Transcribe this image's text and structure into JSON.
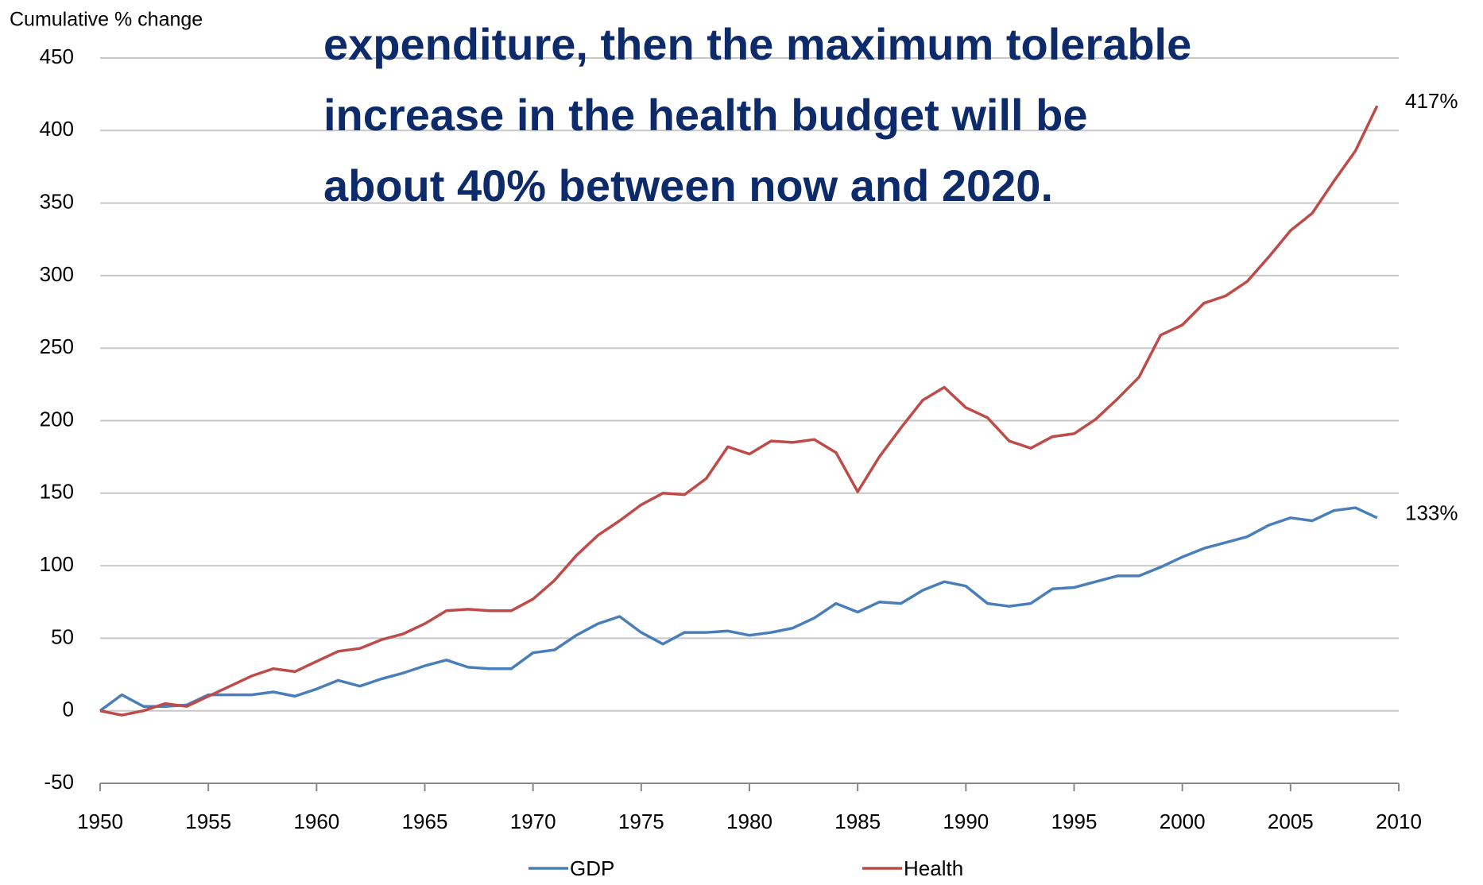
{
  "chart_data": {
    "type": "line",
    "y_axis_label": "Cumulative % change",
    "x": [
      1950,
      1951,
      1952,
      1953,
      1954,
      1955,
      1956,
      1957,
      1958,
      1959,
      1960,
      1961,
      1962,
      1963,
      1964,
      1965,
      1966,
      1967,
      1968,
      1969,
      1970,
      1971,
      1972,
      1973,
      1974,
      1975,
      1976,
      1977,
      1978,
      1979,
      1980,
      1981,
      1982,
      1983,
      1984,
      1985,
      1986,
      1987,
      1988,
      1989,
      1990,
      1991,
      1992,
      1993,
      1994,
      1995,
      1996,
      1997,
      1998,
      1999,
      2000,
      2001,
      2002,
      2003,
      2004,
      2005,
      2006,
      2007,
      2008,
      2009
    ],
    "series": [
      {
        "name": "GDP",
        "color": "#4a7ebb",
        "values": [
          0,
          11,
          3,
          3,
          4,
          11,
          11,
          11,
          13,
          10,
          15,
          21,
          17,
          22,
          26,
          31,
          35,
          30,
          29,
          29,
          40,
          42,
          52,
          60,
          65,
          54,
          46,
          54,
          54,
          55,
          52,
          54,
          57,
          64,
          74,
          68,
          75,
          74,
          83,
          89,
          86,
          74,
          72,
          74,
          84,
          85,
          89,
          93,
          93,
          99,
          106,
          112,
          116,
          120,
          128,
          133,
          131,
          138,
          140,
          133
        ],
        "value_labels": [
          null,
          null,
          null,
          null,
          null,
          null,
          null,
          null,
          null,
          null,
          null,
          null,
          null,
          null,
          null,
          null,
          null,
          null,
          null,
          null,
          null,
          null,
          null,
          null,
          null,
          null,
          null,
          null,
          null,
          null,
          null,
          null,
          null,
          null,
          null,
          null,
          null,
          null,
          null,
          null,
          null,
          null,
          null,
          null,
          null,
          null,
          null,
          null,
          null,
          null,
          null,
          null,
          null,
          null,
          null,
          null,
          null,
          null,
          null,
          "133%"
        ]
      },
      {
        "name": "Health",
        "color": "#be4b48",
        "values": [
          0,
          -3,
          0,
          5,
          3,
          10,
          17,
          24,
          29,
          27,
          34,
          41,
          43,
          49,
          53,
          60,
          69,
          70,
          69,
          69,
          77,
          90,
          107,
          121,
          131,
          142,
          150,
          149,
          160,
          182,
          177,
          186,
          185,
          187,
          178,
          151,
          175,
          195,
          214,
          223,
          209,
          202,
          186,
          181,
          189,
          191,
          201,
          215,
          230,
          259,
          266,
          281,
          286,
          296,
          313,
          331,
          343,
          365,
          386,
          417
        ],
        "value_labels": [
          null,
          null,
          null,
          null,
          null,
          null,
          null,
          null,
          null,
          null,
          null,
          null,
          null,
          null,
          null,
          null,
          null,
          null,
          null,
          null,
          null,
          null,
          null,
          null,
          null,
          null,
          null,
          null,
          null,
          null,
          null,
          null,
          null,
          null,
          null,
          null,
          null,
          null,
          null,
          null,
          null,
          null,
          null,
          null,
          null,
          null,
          null,
          null,
          null,
          null,
          null,
          null,
          null,
          null,
          null,
          null,
          null,
          null,
          null,
          "417%"
        ]
      }
    ],
    "xlim": [
      1950,
      2010
    ],
    "xticks": [
      1950,
      1955,
      1960,
      1965,
      1970,
      1975,
      1980,
      1985,
      1990,
      1995,
      2000,
      2005,
      2010
    ],
    "ylim": [
      -50,
      450
    ],
    "yticks": [
      -50,
      0,
      50,
      100,
      150,
      200,
      250,
      300,
      350,
      400,
      450
    ],
    "grid": true
  },
  "overlay": {
    "lines": [
      "expenditure, then the maximum tolerable",
      "increase in the health budget will be",
      "about 40% between now and 2020."
    ],
    "color": "#0d2a6b"
  }
}
